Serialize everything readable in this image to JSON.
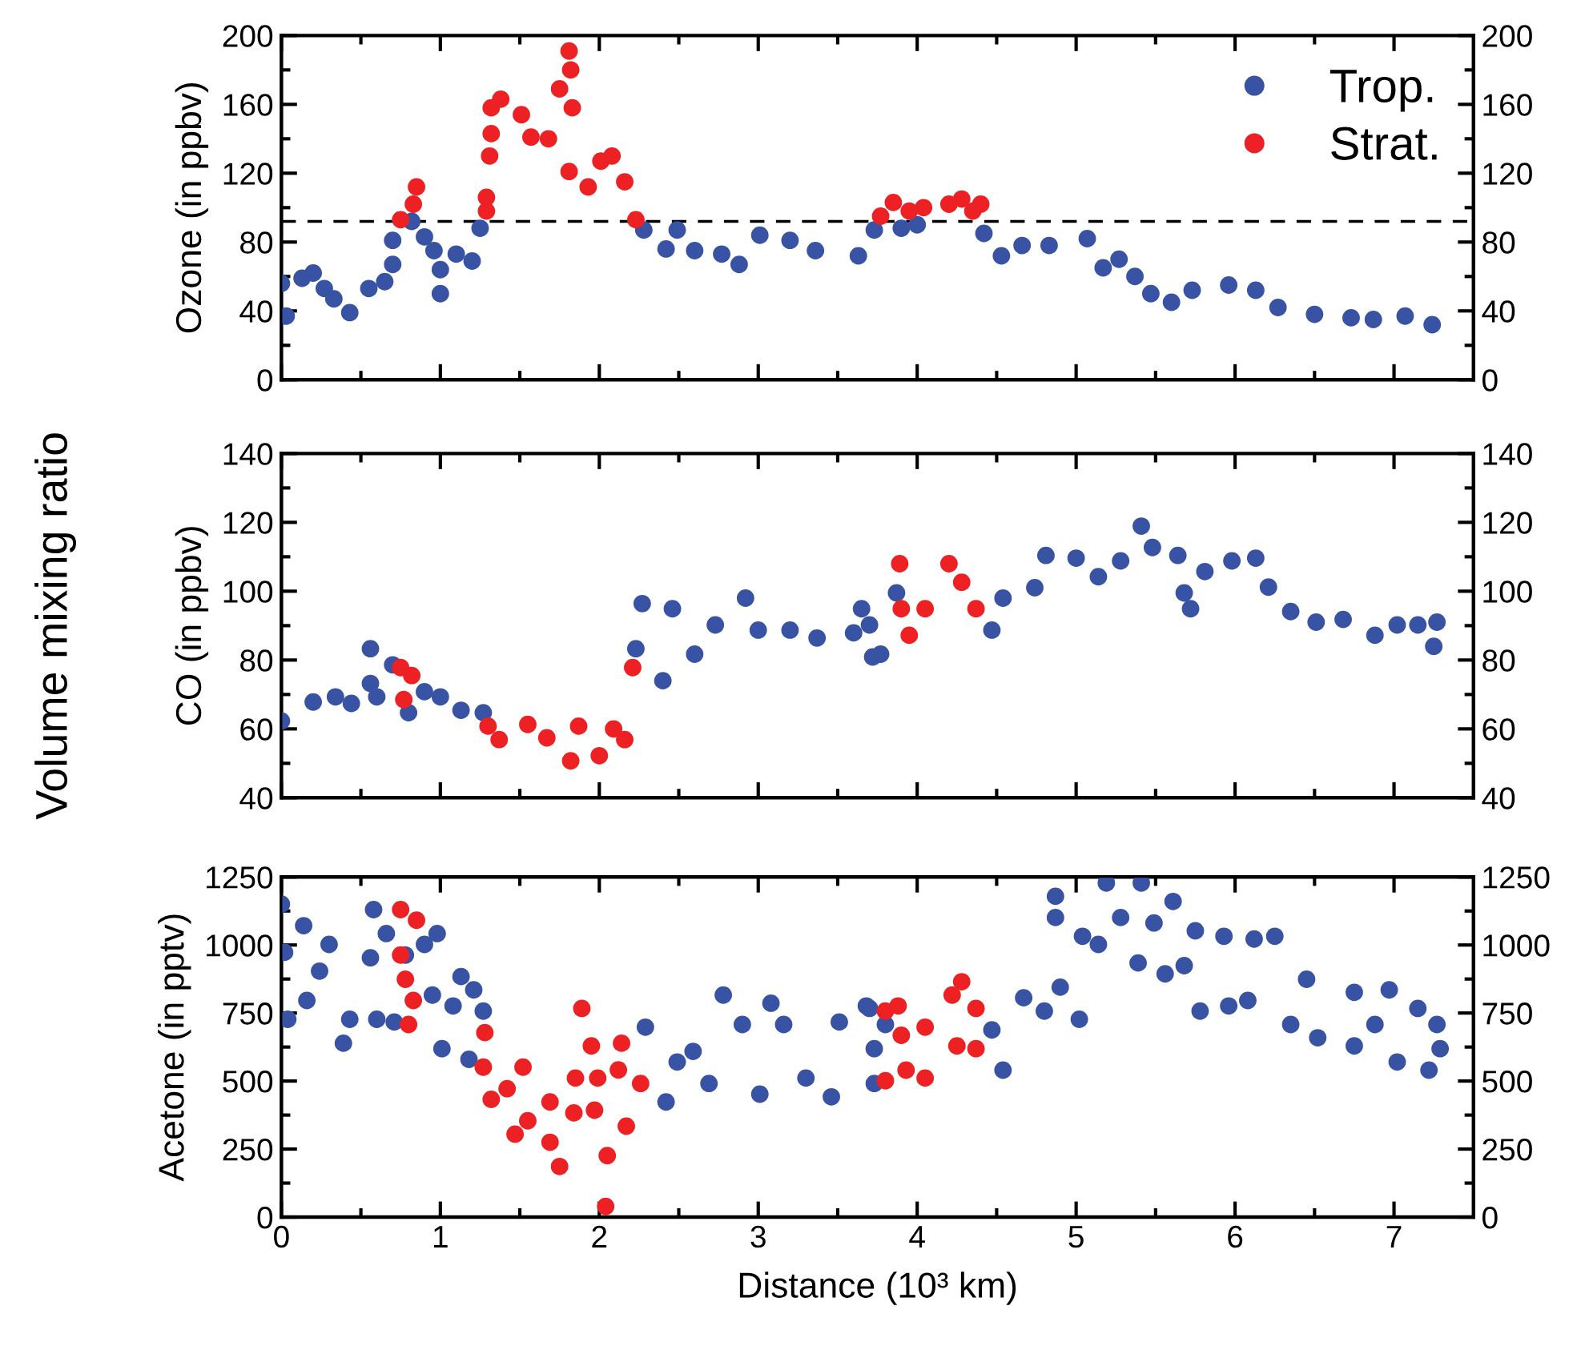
{
  "chart_data": [
    {
      "type": "scatter",
      "ylabel": "Ozone (in ppbv)",
      "xlim": [
        0,
        7.5
      ],
      "xticks": [
        0,
        {
          "value": 0.5,
          "label": null
        },
        1,
        {
          "value": 1.5,
          "label": null
        },
        2,
        {
          "value": 2.5,
          "label": null
        },
        3,
        {
          "value": 3.5,
          "label": null
        },
        4,
        {
          "value": 4.5,
          "label": null
        },
        5,
        {
          "value": 5.5,
          "label": null
        },
        6,
        {
          "value": 6.5,
          "label": null
        },
        7
      ],
      "ylim": [
        0,
        200
      ],
      "yticks": [
        0,
        {
          "value": 20,
          "label": null
        },
        40,
        {
          "value": 60,
          "label": null
        },
        80,
        {
          "value": 100,
          "label": null
        },
        120,
        {
          "value": 140,
          "label": null
        },
        160,
        {
          "value": 180,
          "label": null
        },
        200
      ],
      "y2lim": [
        0,
        200
      ],
      "y2ticks": [
        0,
        {
          "value": 20,
          "label": null
        },
        40,
        {
          "value": 60,
          "label": null
        },
        80,
        {
          "value": 100,
          "label": null
        },
        120,
        {
          "value": 140,
          "label": null
        },
        160,
        {
          "value": 180,
          "label": null
        },
        200
      ],
      "tick_labels": "y",
      "grid": false,
      "legend": "top right",
      "marker": "circle",
      "ref_lines": [
        {
          "axis": "y",
          "value": 92,
          "color": "#000000",
          "line_style": "dashed"
        }
      ],
      "series": [
        {
          "name": "Trop.",
          "color": "#3953a4",
          "x": [
            0.0,
            0.03,
            0.13,
            0.2,
            0.27,
            0.33,
            0.43,
            0.55,
            0.65,
            0.7,
            0.7,
            0.82,
            0.9,
            0.96,
            1.0,
            1.0,
            1.1,
            1.2,
            1.25,
            2.28,
            2.42,
            2.49,
            2.6,
            2.77,
            2.88,
            3.01,
            3.2,
            3.36,
            3.63,
            3.73,
            3.9,
            4.0,
            4.42,
            4.53,
            4.66,
            4.83,
            5.07,
            5.17,
            5.27,
            5.37,
            5.47,
            5.6,
            5.73,
            5.96,
            6.13,
            6.27,
            6.5,
            6.73,
            6.87,
            7.07,
            7.24
          ],
          "values": [
            56,
            37,
            59,
            62,
            53,
            47,
            39,
            53,
            57,
            67,
            81,
            92,
            83,
            75,
            50,
            64,
            73,
            69,
            88,
            87,
            76,
            87,
            75,
            73,
            67,
            84,
            81,
            75,
            72,
            87,
            88,
            90,
            85,
            72,
            78,
            78,
            82,
            65,
            70,
            60,
            50,
            45,
            52,
            55,
            52,
            42,
            38,
            36,
            35,
            37,
            32
          ]
        },
        {
          "name": "Strat.",
          "color": "#ed2024",
          "x": [
            0.75,
            0.83,
            0.85,
            1.29,
            1.29,
            1.31,
            1.32,
            1.32,
            1.38,
            1.51,
            1.57,
            1.68,
            1.75,
            1.81,
            1.82,
            1.83,
            1.81,
            1.93,
            2.01,
            2.08,
            2.16,
            2.23,
            3.77,
            3.85,
            3.95,
            4.04,
            4.2,
            4.28,
            4.35,
            4.4
          ],
          "values": [
            93,
            102,
            112,
            98,
            106,
            130,
            143,
            158,
            163,
            154,
            141,
            140,
            169,
            191,
            180,
            158,
            121,
            112,
            127,
            130,
            115,
            93,
            95,
            103,
            98,
            100,
            102,
            105,
            98,
            102
          ]
        }
      ]
    },
    {
      "type": "scatter",
      "ylabel": "CO (in ppbv)",
      "annotations": [
        "Volume mixing ratio"
      ],
      "xlim": [
        0,
        7.5
      ],
      "xticks": [
        0,
        {
          "value": 0.5,
          "label": null
        },
        1,
        {
          "value": 1.5,
          "label": null
        },
        2,
        {
          "value": 2.5,
          "label": null
        },
        3,
        {
          "value": 3.5,
          "label": null
        },
        4,
        {
          "value": 4.5,
          "label": null
        },
        5,
        {
          "value": 5.5,
          "label": null
        },
        6,
        {
          "value": 6.5,
          "label": null
        },
        7
      ],
      "ylim": [
        40,
        140
      ],
      "yticks": [
        40,
        {
          "value": 50,
          "label": null
        },
        60,
        {
          "value": 70,
          "label": null
        },
        80,
        {
          "value": 90,
          "label": null
        },
        100,
        {
          "value": 110,
          "label": null
        },
        120,
        {
          "value": 130,
          "label": null
        },
        140
      ],
      "y2lim": [
        40,
        140
      ],
      "y2ticks": [
        40,
        {
          "value": 50,
          "label": null
        },
        60,
        {
          "value": 70,
          "label": null
        },
        80,
        {
          "value": 90,
          "label": null
        },
        100,
        {
          "value": 110,
          "label": null
        },
        120,
        {
          "value": 130,
          "label": null
        },
        140
      ],
      "tick_labels": "y",
      "grid": false,
      "marker": "circle",
      "series": [
        {
          "color": "#3953a4",
          "x": [
            0.0,
            0.2,
            0.34,
            0.44,
            0.56,
            0.56,
            0.6,
            0.7,
            0.8,
            0.9,
            1.0,
            1.13,
            1.27,
            2.23,
            2.27,
            2.4,
            2.46,
            2.6,
            2.73,
            2.92,
            3.0,
            3.2,
            3.37,
            3.6,
            3.65,
            3.7,
            3.72,
            3.77,
            3.87,
            4.47,
            4.54,
            4.74,
            4.81,
            5.0,
            5.14,
            5.28,
            5.41,
            5.48,
            5.64,
            5.68,
            5.72,
            5.81,
            5.98,
            6.13,
            6.21,
            6.35,
            6.51,
            6.68,
            6.88,
            7.02,
            7.15,
            7.25,
            7.27
          ],
          "values": [
            62.3,
            67.8,
            69.3,
            67.4,
            83.3,
            73.2,
            69.3,
            78.6,
            64.7,
            70.8,
            69.3,
            65.4,
            64.7,
            83.3,
            96.4,
            74.0,
            94.9,
            81.7,
            90.2,
            98.0,
            88.7,
            88.7,
            86.4,
            87.9,
            94.9,
            90.2,
            80.9,
            81.7,
            99.5,
            88.7,
            98.0,
            101.0,
            110.4,
            109.6,
            104.2,
            108.8,
            118.9,
            112.7,
            110.4,
            99.5,
            94.9,
            105.7,
            108.8,
            109.6,
            101.2,
            94.1,
            91.0,
            91.8,
            87.2,
            90.2,
            90.2,
            84.0,
            91.0
          ]
        },
        {
          "color": "#ed2024",
          "x": [
            0.75,
            0.77,
            0.82,
            1.3,
            1.37,
            1.55,
            1.67,
            1.82,
            1.87,
            2.0,
            2.09,
            2.16,
            2.21,
            3.89,
            3.9,
            3.95,
            4.05,
            4.2,
            4.28,
            4.37
          ],
          "values": [
            77.8,
            68.5,
            75.5,
            60.8,
            56.9,
            61.3,
            57.4,
            50.7,
            60.8,
            52.2,
            60.0,
            56.9,
            77.8,
            108.0,
            94.9,
            87.2,
            94.9,
            108.0,
            102.6,
            94.9
          ]
        }
      ]
    },
    {
      "type": "scatter",
      "ylabel": "Acetone (in pptv)",
      "xlabel": "Distance (10³ km)",
      "xlim": [
        0,
        7.5
      ],
      "xticks": [
        0,
        {
          "value": 0.5,
          "label": null
        },
        1,
        {
          "value": 1.5,
          "label": null
        },
        2,
        {
          "value": 2.5,
          "label": null
        },
        3,
        {
          "value": 3.5,
          "label": null
        },
        4,
        {
          "value": 4.5,
          "label": null
        },
        5,
        {
          "value": 5.5,
          "label": null
        },
        6,
        {
          "value": 6.5,
          "label": null
        },
        7
      ],
      "ylim": [
        0,
        1250
      ],
      "yticks": [
        0,
        {
          "value": 125,
          "label": null
        },
        250,
        {
          "value": 375,
          "label": null
        },
        500,
        {
          "value": 625,
          "label": null
        },
        750,
        {
          "value": 875,
          "label": null
        },
        1000,
        {
          "value": 1125,
          "label": null
        },
        1250
      ],
      "y2lim": [
        0,
        1250
      ],
      "y2ticks": [
        0,
        {
          "value": 125,
          "label": null
        },
        250,
        {
          "value": 375,
          "label": null
        },
        500,
        {
          "value": 625,
          "label": null
        },
        750,
        {
          "value": 875,
          "label": null
        },
        1000,
        {
          "value": 1125,
          "label": null
        },
        1250
      ],
      "grid": false,
      "marker": "circle",
      "series": [
        {
          "color": "#3953a4",
          "x": [
            0.0,
            0.02,
            0.04,
            0.14,
            0.16,
            0.24,
            0.3,
            0.39,
            0.43,
            0.58,
            0.6,
            0.56,
            0.66,
            0.71,
            0.78,
            0.9,
            0.98,
            0.95,
            1.01,
            1.13,
            1.08,
            1.18,
            1.21,
            1.27,
            2.29,
            2.42,
            2.49,
            2.59,
            2.69,
            2.78,
            2.9,
            3.01,
            3.08,
            3.16,
            3.3,
            3.46,
            3.51,
            3.68,
            3.73,
            3.7,
            3.73,
            3.8,
            4.47,
            4.54,
            4.67,
            4.8,
            4.87,
            4.87,
            4.9,
            5.02,
            5.04,
            5.14,
            5.19,
            5.28,
            5.41,
            5.39,
            5.49,
            5.61,
            5.56,
            5.75,
            5.68,
            5.78,
            5.93,
            5.96,
            6.12,
            6.08,
            6.25,
            6.35,
            6.45,
            6.52,
            6.75,
            6.75,
            6.88,
            6.97,
            7.02,
            7.15,
            7.22,
            7.27,
            7.29
          ],
          "values": [
            1150,
            973,
            727,
            1071,
            796,
            904,
            1002,
            639,
            727,
            1130,
            727,
            953,
            1042,
            717,
            963,
            1002,
            1042,
            816,
            619,
            884,
            776,
            580,
            835,
            757,
            698,
            423,
            570,
            609,
            491,
            816,
            708,
            452,
            786,
            708,
            511,
            442,
            717,
            776,
            619,
            767,
            491,
            708,
            688,
            540,
            806,
            757,
            1179,
            1101,
            845,
            727,
            1032,
            1002,
            1228,
            1101,
            1228,
            934,
            1081,
            1160,
            894,
            1052,
            924,
            757,
            1032,
            776,
            1022,
            796,
            1032,
            708,
            874,
            659,
            826,
            629,
            708,
            835,
            570,
            767,
            540,
            708,
            619
          ]
        },
        {
          "color": "#ed2024",
          "x": [
            0.75,
            0.85,
            0.75,
            0.78,
            0.83,
            0.8,
            1.28,
            1.27,
            1.32,
            1.42,
            1.47,
            1.55,
            1.52,
            1.69,
            1.69,
            1.75,
            1.84,
            1.85,
            1.89,
            1.95,
            1.99,
            1.97,
            2.05,
            2.04,
            2.14,
            2.12,
            2.17,
            2.26,
            3.8,
            3.88,
            3.9,
            3.8,
            3.93,
            4.05,
            4.05,
            4.28,
            4.22,
            4.25,
            4.37,
            4.37
          ],
          "values": [
            1130,
            1091,
            963,
            874,
            796,
            708,
            678,
            551,
            433,
            472,
            305,
            354,
            551,
            423,
            275,
            186,
            383,
            511,
            767,
            629,
            511,
            393,
            226,
            39,
            639,
            541,
            334,
            491,
            757,
            776,
            668,
            501,
            540,
            698,
            511,
            865,
            816,
            629,
            767,
            619
          ]
        }
      ]
    }
  ]
}
